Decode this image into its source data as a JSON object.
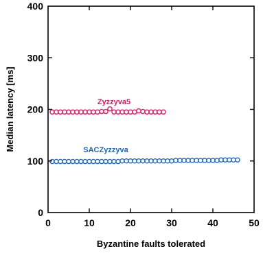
{
  "chart_data": {
    "type": "scatter",
    "xlabel": "Byzantine faults tolerated",
    "ylabel": "Median latency [ms]",
    "xlim": [
      0,
      50
    ],
    "ylim": [
      0,
      400
    ],
    "xticks": [
      0,
      10,
      20,
      30,
      40,
      50
    ],
    "yticks": [
      0,
      100,
      200,
      300,
      400
    ],
    "grid": false,
    "series": [
      {
        "name": "Zyzzyva5",
        "color": "#e0185f",
        "x": [
          1,
          2,
          3,
          4,
          5,
          6,
          7,
          8,
          9,
          10,
          11,
          12,
          13,
          14,
          15,
          16,
          17,
          18,
          19,
          20,
          21,
          22,
          23,
          24,
          25,
          26,
          27,
          28
        ],
        "y": [
          195,
          195,
          195,
          195,
          195,
          195,
          195,
          195,
          195,
          195,
          195,
          195,
          196,
          196,
          201,
          195,
          195,
          195,
          195,
          195,
          195,
          197,
          196,
          195,
          195,
          195,
          195,
          195
        ]
      },
      {
        "name": "SACZyzzyva",
        "color": "#1a66c2",
        "x": [
          1,
          2,
          3,
          4,
          5,
          6,
          7,
          8,
          9,
          10,
          11,
          12,
          13,
          14,
          15,
          16,
          17,
          18,
          19,
          20,
          21,
          22,
          23,
          24,
          25,
          26,
          27,
          28,
          29,
          30,
          31,
          32,
          33,
          34,
          35,
          36,
          37,
          38,
          39,
          40,
          41,
          42,
          43,
          44,
          45,
          46
        ],
        "y": [
          99,
          99,
          99,
          99,
          99,
          99,
          99,
          99,
          99,
          99,
          99,
          99,
          99,
          99,
          99,
          99,
          99,
          100,
          100,
          100,
          100,
          100,
          100,
          100,
          100,
          100,
          100,
          100,
          100,
          100,
          101,
          101,
          101,
          101,
          101,
          101,
          101,
          101,
          101,
          101,
          101,
          102,
          102,
          102,
          102,
          102
        ]
      }
    ]
  }
}
